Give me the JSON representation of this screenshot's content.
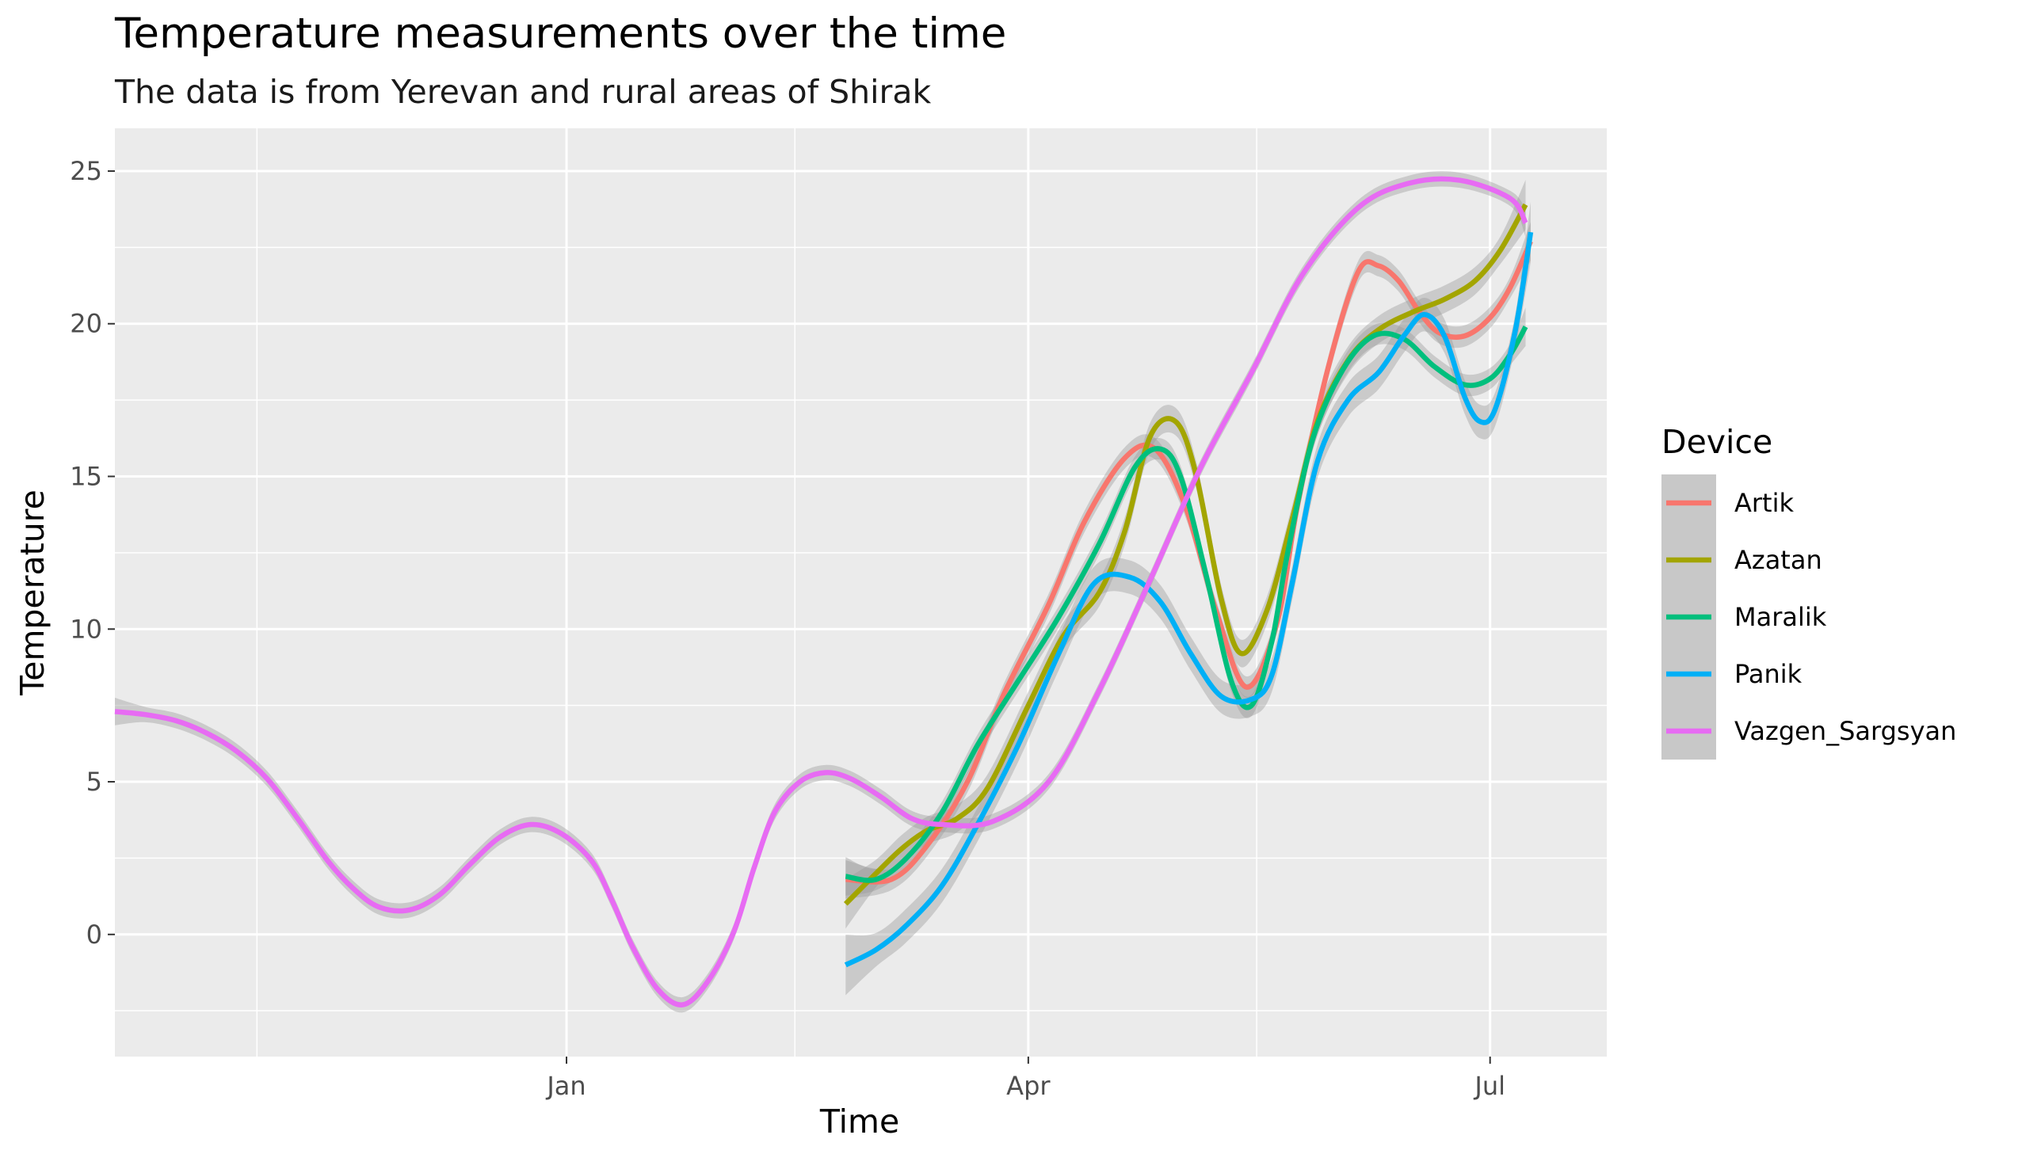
{
  "chart_data": {
    "type": "line",
    "title": "Temperature measurements over the time",
    "subtitle": "The data is from Yerevan and rural areas of Shirak",
    "xlabel": "Time",
    "ylabel": "Temperature",
    "x_ticks": [
      {
        "label": "Jan",
        "date": "2020-01-01"
      },
      {
        "label": "Apr",
        "date": "2020-04-01"
      },
      {
        "label": "Jul",
        "date": "2020-07-01"
      }
    ],
    "x_minor_ticks": [
      "2019-11-01",
      "2020-02-15",
      "2020-05-16"
    ],
    "xlim": [
      "2019-10-04",
      "2020-07-24"
    ],
    "y_ticks": [
      0,
      5,
      10,
      15,
      20,
      25
    ],
    "ylim": [
      -4,
      26.4
    ],
    "grid": true,
    "confidence_band": true,
    "legend_title": "Device",
    "legend_position": "right",
    "background": "#ebebeb",
    "series": [
      {
        "name": "Artik",
        "color": "#F8766D",
        "x": [
          "2020-02-25",
          "2020-03-05",
          "2020-03-12",
          "2020-03-20",
          "2020-03-27",
          "2020-04-05",
          "2020-04-12",
          "2020-04-20",
          "2020-04-26",
          "2020-05-02",
          "2020-05-08",
          "2020-05-14",
          "2020-05-20",
          "2020-05-24",
          "2020-05-30",
          "2020-06-05",
          "2020-06-09",
          "2020-06-13",
          "2020-06-17",
          "2020-06-21",
          "2020-06-26",
          "2020-07-01",
          "2020-07-05",
          "2020-07-09"
        ],
        "y": [
          1.8,
          1.8,
          2.9,
          5.0,
          7.8,
          10.8,
          13.5,
          15.6,
          15.9,
          14.0,
          10.6,
          8.1,
          10.2,
          14.0,
          18.5,
          21.7,
          21.9,
          21.4,
          20.4,
          19.7,
          19.6,
          20.2,
          21.2,
          22.7
        ],
        "ci": 0.35
      },
      {
        "name": "Azatan",
        "color": "#A3A500",
        "x": [
          "2020-02-25",
          "2020-03-02",
          "2020-03-07",
          "2020-03-12",
          "2020-03-18",
          "2020-03-24",
          "2020-04-01",
          "2020-04-08",
          "2020-04-15",
          "2020-04-20",
          "2020-04-25",
          "2020-04-30",
          "2020-05-04",
          "2020-05-09",
          "2020-05-13",
          "2020-05-18",
          "2020-05-23",
          "2020-05-28",
          "2020-06-03",
          "2020-06-09",
          "2020-06-16",
          "2020-06-22",
          "2020-06-28",
          "2020-07-03",
          "2020-07-08"
        ],
        "y": [
          1.0,
          2.0,
          2.8,
          3.4,
          3.8,
          4.8,
          7.5,
          9.8,
          11.2,
          13.2,
          16.3,
          16.8,
          15.1,
          11.0,
          9.2,
          10.6,
          13.6,
          16.8,
          18.8,
          19.8,
          20.4,
          20.8,
          21.4,
          22.4,
          23.9
        ],
        "ci": 0.45
      },
      {
        "name": "Maralik",
        "color": "#00BF7D",
        "x": [
          "2020-02-25",
          "2020-03-02",
          "2020-03-08",
          "2020-03-15",
          "2020-03-22",
          "2020-03-30",
          "2020-04-07",
          "2020-04-15",
          "2020-04-22",
          "2020-04-27",
          "2020-05-01",
          "2020-05-06",
          "2020-05-11",
          "2020-05-15",
          "2020-05-19",
          "2020-05-22",
          "2020-05-27",
          "2020-06-02",
          "2020-06-08",
          "2020-06-14",
          "2020-06-20",
          "2020-06-26",
          "2020-07-01",
          "2020-07-05",
          "2020-07-08"
        ],
        "y": [
          1.9,
          1.8,
          2.5,
          4.0,
          6.2,
          8.3,
          10.4,
          12.8,
          15.3,
          15.9,
          15.0,
          11.8,
          8.3,
          7.5,
          9.6,
          12.4,
          16.2,
          18.5,
          19.6,
          19.5,
          18.6,
          18.0,
          18.2,
          19.0,
          19.9
        ],
        "ci": 0.35
      },
      {
        "name": "Panik",
        "color": "#00B0F6",
        "x": [
          "2020-02-25",
          "2020-03-02",
          "2020-03-08",
          "2020-03-15",
          "2020-03-22",
          "2020-03-30",
          "2020-04-07",
          "2020-04-14",
          "2020-04-21",
          "2020-04-27",
          "2020-05-03",
          "2020-05-09",
          "2020-05-15",
          "2020-05-19",
          "2020-05-23",
          "2020-05-28",
          "2020-06-03",
          "2020-06-09",
          "2020-06-14",
          "2020-06-18",
          "2020-06-22",
          "2020-06-26",
          "2020-06-29",
          "2020-07-02",
          "2020-07-06",
          "2020-07-09"
        ],
        "y": [
          -1.0,
          -0.5,
          0.3,
          1.6,
          3.6,
          6.2,
          9.2,
          11.5,
          11.7,
          10.9,
          9.2,
          7.8,
          7.7,
          8.5,
          11.5,
          15.5,
          17.5,
          18.4,
          19.6,
          20.3,
          19.6,
          17.6,
          16.8,
          17.2,
          19.8,
          23.0
        ],
        "ci": 0.55
      },
      {
        "name": "Vazgen_Sargsyan",
        "color": "#E76BF3",
        "x": [
          "2019-10-04",
          "2019-10-10",
          "2019-10-16",
          "2019-10-22",
          "2019-10-28",
          "2019-11-03",
          "2019-11-09",
          "2019-11-15",
          "2019-11-20",
          "2019-11-25",
          "2019-12-01",
          "2019-12-07",
          "2019-12-13",
          "2019-12-19",
          "2019-12-25",
          "2019-12-31",
          "2020-01-06",
          "2020-01-10",
          "2020-01-14",
          "2020-01-19",
          "2020-01-24",
          "2020-01-29",
          "2020-02-03",
          "2020-02-07",
          "2020-02-11",
          "2020-02-16",
          "2020-02-21",
          "2020-02-26",
          "2020-03-03",
          "2020-03-09",
          "2020-03-15",
          "2020-03-25",
          "2020-04-05",
          "2020-04-15",
          "2020-04-25",
          "2020-05-05",
          "2020-05-15",
          "2020-05-25",
          "2020-06-05",
          "2020-06-15",
          "2020-06-25",
          "2020-07-05",
          "2020-07-08"
        ],
        "y": [
          7.3,
          7.2,
          7.0,
          6.6,
          6.0,
          5.1,
          3.8,
          2.4,
          1.5,
          0.9,
          0.8,
          1.3,
          2.3,
          3.2,
          3.6,
          3.3,
          2.4,
          1.1,
          -0.4,
          -1.8,
          -2.3,
          -1.5,
          0.1,
          2.2,
          4.0,
          5.0,
          5.3,
          5.1,
          4.5,
          3.8,
          3.6,
          3.7,
          5.0,
          8.0,
          11.6,
          15.3,
          18.4,
          21.6,
          23.8,
          24.6,
          24.7,
          24.1,
          23.3
        ],
        "ci": 0.25
      }
    ]
  }
}
